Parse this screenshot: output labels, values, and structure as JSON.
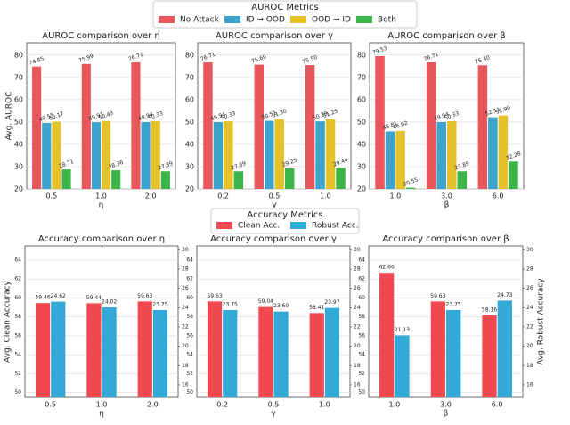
{
  "chart_data": [
    {
      "type": "bar",
      "title": "AUROC comparison over η",
      "x_label": "η",
      "y_label": "Avg. AUROC",
      "legend_title": "AUROC Metrics",
      "categories": [
        "0.5",
        "1.0",
        "2.0"
      ],
      "ylim": [
        20,
        85.5
      ],
      "yticks": [
        20,
        30,
        40,
        50,
        60,
        70,
        80
      ],
      "grid": true,
      "series": [
        {
          "name": "No Attack",
          "color": "#e8575b",
          "values": [
            74.85,
            75.99,
            76.71
          ],
          "value_labels": [
            "74.85",
            "75.99",
            "76.71"
          ]
        },
        {
          "name": "ID → OOD",
          "color": "#3ea3cc",
          "values": [
            49.55,
            49.91,
            49.94
          ],
          "value_labels": [
            "49.55",
            "49.91",
            "49.94"
          ]
        },
        {
          "name": "OOD → ID",
          "color": "#e5c12c",
          "values": [
            50.17,
            50.43,
            50.33
          ],
          "value_labels": [
            "50.17",
            "50.43",
            "50.33"
          ]
        },
        {
          "name": "Both",
          "color": "#3bb54a",
          "values": [
            28.71,
            28.36,
            27.89
          ],
          "value_labels": [
            "28.71",
            "28.36",
            "27.89"
          ]
        }
      ]
    },
    {
      "type": "bar",
      "title": "AUROC comparison over γ",
      "x_label": "γ",
      "categories": [
        "0.2",
        "0.5",
        "1.0"
      ],
      "ylim": [
        20,
        85.5
      ],
      "yticks": [
        20,
        30,
        40,
        50,
        60,
        70,
        80
      ],
      "grid": true,
      "series": [
        {
          "name": "No Attack",
          "color": "#e8575b",
          "values": [
            76.71,
            75.69,
            75.5
          ],
          "value_labels": [
            "76.71",
            "75.69",
            "75.50"
          ]
        },
        {
          "name": "ID → OOD",
          "color": "#3ea3cc",
          "values": [
            49.94,
            50.51,
            50.28
          ],
          "value_labels": [
            "49.94",
            "50.51",
            "50.28"
          ]
        },
        {
          "name": "OOD → ID",
          "color": "#e5c12c",
          "values": [
            50.33,
            51.3,
            51.25
          ],
          "value_labels": [
            "50.33",
            "51.30",
            "51.25"
          ]
        },
        {
          "name": "Both",
          "color": "#3bb54a",
          "values": [
            27.89,
            29.25,
            29.44
          ],
          "value_labels": [
            "27.89",
            "29.25",
            "29.44"
          ]
        }
      ]
    },
    {
      "type": "bar",
      "title": "AUROC comparison over β",
      "x_label": "β",
      "categories": [
        "1.0",
        "3.0",
        "6.0"
      ],
      "ylim": [
        20,
        85.5
      ],
      "yticks": [
        20,
        30,
        40,
        50,
        60,
        70,
        80
      ],
      "grid": true,
      "series": [
        {
          "name": "No Attack",
          "color": "#e8575b",
          "values": [
            79.53,
            76.71,
            75.4
          ],
          "value_labels": [
            "79.53",
            "76.71",
            "75.40"
          ]
        },
        {
          "name": "ID → OOD",
          "color": "#3ea3cc",
          "values": [
            45.81,
            49.94,
            52.11
          ],
          "value_labels": [
            "45.81",
            "49.94",
            "52.11"
          ]
        },
        {
          "name": "OOD → ID",
          "color": "#e5c12c",
          "values": [
            46.02,
            50.33,
            52.9
          ],
          "value_labels": [
            "46.02",
            "50.33",
            "52.90"
          ]
        },
        {
          "name": "Both",
          "color": "#3bb54a",
          "values": [
            20.55,
            27.89,
            32.28
          ],
          "value_labels": [
            "20.55",
            "27.89",
            "32.28"
          ]
        }
      ]
    },
    {
      "type": "bar",
      "title": "Accuracy comparison over η",
      "x_label": "η",
      "y_label": "Avg. Clean Accuracy",
      "legend_title": "Accuracy Metrics",
      "categories": [
        "0.5",
        "1.0",
        "2.0"
      ],
      "ylim": [
        49.5,
        65.5
      ],
      "yticks": [
        50,
        52,
        54,
        56,
        58,
        60,
        62,
        64
      ],
      "y2lim": [
        14.7,
        30.4
      ],
      "y2ticks": [
        16,
        18,
        20,
        22,
        24,
        26,
        28,
        30
      ],
      "grid": true,
      "series": [
        {
          "name": "Clean Acc.",
          "color": "#f04a50",
          "values": [
            59.46,
            59.44,
            59.63
          ],
          "value_labels": [
            "59.46",
            "59.44",
            "59.63"
          ]
        },
        {
          "name": "Robust Acc.",
          "color": "#33a9d8",
          "axis": "y2",
          "values": [
            24.62,
            24.02,
            23.75
          ],
          "value_labels": [
            "24.62",
            "24.02",
            "23.75"
          ]
        }
      ]
    },
    {
      "type": "bar",
      "title": "Accuracy comparison over γ",
      "x_label": "γ",
      "categories": [
        "0.2",
        "0.5",
        "1.0"
      ],
      "ylim": [
        49.5,
        65.5
      ],
      "yticks": [
        50,
        52,
        54,
        56,
        58,
        60,
        62,
        64
      ],
      "y2lim": [
        14.7,
        30.4
      ],
      "y2ticks": [
        16,
        18,
        20,
        22,
        24,
        26,
        28,
        30
      ],
      "grid": true,
      "series": [
        {
          "name": "Clean Acc.",
          "color": "#f04a50",
          "values": [
            59.63,
            59.04,
            58.41
          ],
          "value_labels": [
            "59.63",
            "59.04",
            "58.41"
          ]
        },
        {
          "name": "Robust Acc.",
          "color": "#33a9d8",
          "axis": "y2",
          "values": [
            23.75,
            23.6,
            23.97
          ],
          "value_labels": [
            "23.75",
            "23.60",
            "23.97"
          ]
        }
      ]
    },
    {
      "type": "bar",
      "title": "Accuracy comparison over β",
      "x_label": "β",
      "y2_label": "Avg. Robust Accuracy",
      "categories": [
        "1.0",
        "3.0",
        "6.0"
      ],
      "ylim": [
        49.5,
        65.5
      ],
      "yticks": [
        50,
        52,
        54,
        56,
        58,
        60,
        62,
        64
      ],
      "y2lim": [
        14.7,
        30.4
      ],
      "y2ticks": [
        16,
        18,
        20,
        22,
        24,
        26,
        28,
        30
      ],
      "grid": true,
      "series": [
        {
          "name": "Clean Acc.",
          "color": "#f04a50",
          "values": [
            62.66,
            59.63,
            58.16
          ],
          "value_labels": [
            "62.66",
            "59.63",
            "58.16"
          ]
        },
        {
          "name": "Robust Acc.",
          "color": "#33a9d8",
          "axis": "y2",
          "values": [
            21.13,
            23.75,
            24.73
          ],
          "value_labels": [
            "21.13",
            "23.75",
            "24.73"
          ]
        }
      ]
    }
  ]
}
